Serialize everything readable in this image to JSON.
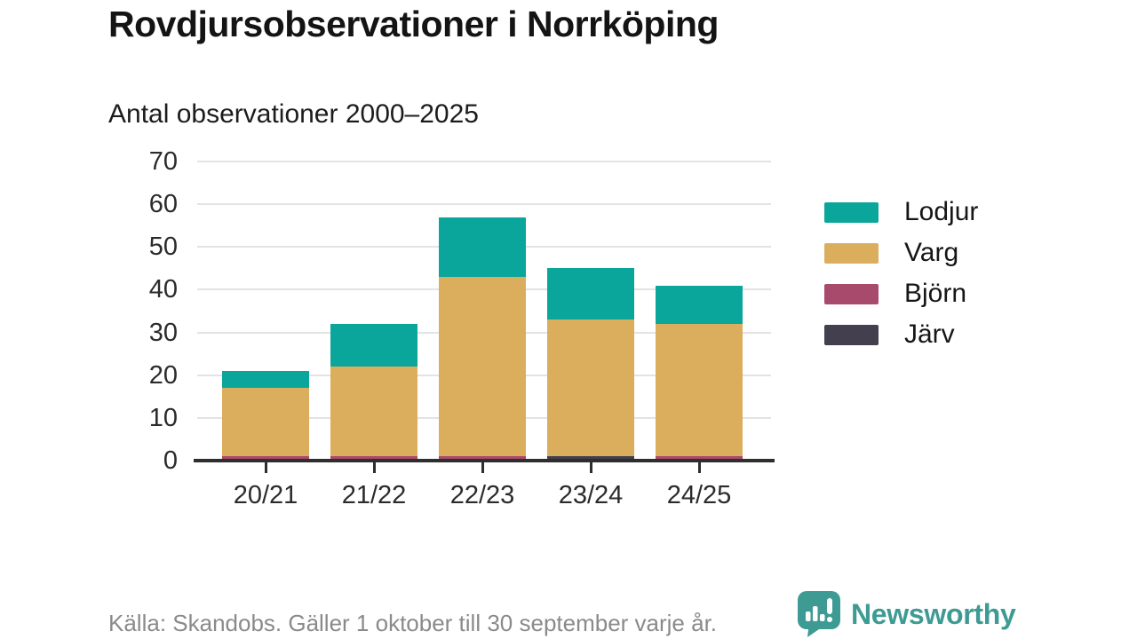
{
  "header": {
    "title": "Rovdjursobservationer i Norrköping",
    "subtitle": "Antal observationer 2000–2025"
  },
  "footer": {
    "source": "Källa: Skandobs. Gäller 1 oktober till 30 september varje år.",
    "brand": "Newsworthy"
  },
  "colors": {
    "lodjur_teal": "#0ba69b",
    "varg_gold": "#dbae5e",
    "bjorn_maroon": "#a84a6b",
    "jarv_dark": "#433f4e",
    "brand_teal": "#3e9b94",
    "axis": "#2e2e2e",
    "grid": "#e3e3e3",
    "muted_text": "#8a8a8a"
  },
  "icons": {
    "logo": "newsworthy-speech-bubble-barchart-icon"
  },
  "chart_data": {
    "type": "bar",
    "stacked": true,
    "title": "Rovdjursobservationer i Norrköping",
    "subtitle": "Antal observationer 2000–2025",
    "categories": [
      "20/21",
      "21/22",
      "22/23",
      "23/24",
      "24/25"
    ],
    "series": [
      {
        "name": "Järv",
        "color": "#433f4e",
        "values": [
          0,
          0,
          0,
          1,
          0
        ]
      },
      {
        "name": "Björn",
        "color": "#a84a6b",
        "values": [
          1,
          1,
          1,
          0,
          1
        ]
      },
      {
        "name": "Varg",
        "color": "#dbae5e",
        "values": [
          16,
          21,
          42,
          32,
          31
        ]
      },
      {
        "name": "Lodjur",
        "color": "#0ba69b",
        "values": [
          4,
          10,
          14,
          12,
          9
        ]
      }
    ],
    "totals": [
      21,
      32,
      57,
      45,
      41
    ],
    "legend_order": [
      "Lodjur",
      "Varg",
      "Björn",
      "Järv"
    ],
    "legend_position": "right",
    "y_ticks": [
      0,
      10,
      20,
      30,
      40,
      50,
      60,
      70
    ],
    "ylim": [
      0,
      70
    ],
    "xlabel": "",
    "ylabel": "",
    "grid": "horizontal"
  }
}
